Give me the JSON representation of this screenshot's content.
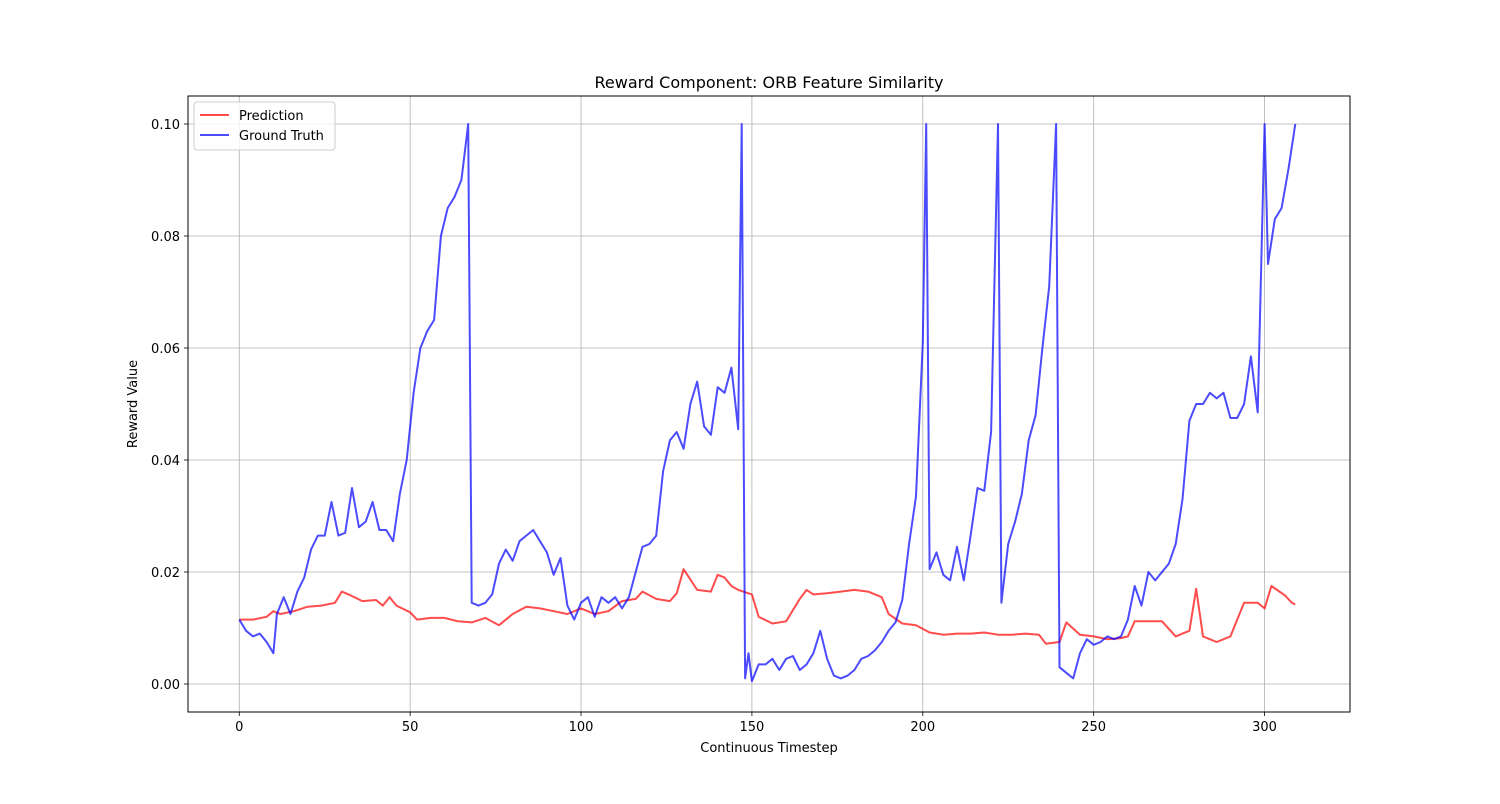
{
  "chart_data": {
    "type": "line",
    "title": "Reward Component: ORB Feature Similarity",
    "xlabel": "Continuous Timestep",
    "ylabel": "Reward Value",
    "xlim": [
      -15,
      325
    ],
    "ylim": [
      -0.005,
      0.105
    ],
    "xticks": [
      0,
      50,
      100,
      150,
      200,
      250,
      300
    ],
    "yticks": [
      0.0,
      0.02,
      0.04,
      0.06,
      0.08,
      0.1
    ],
    "xtick_labels": [
      "0",
      "50",
      "100",
      "150",
      "200",
      "250",
      "300"
    ],
    "ytick_labels": [
      "0.00",
      "0.02",
      "0.04",
      "0.06",
      "0.08",
      "0.10"
    ],
    "grid": true,
    "legend": "top-left",
    "series": [
      {
        "name": "Prediction",
        "color": "#ff0000",
        "x": [
          0,
          4,
          8,
          10,
          12,
          16,
          20,
          24,
          28,
          30,
          32,
          36,
          40,
          42,
          44,
          46,
          50,
          52,
          56,
          60,
          64,
          68,
          72,
          76,
          80,
          84,
          88,
          92,
          96,
          100,
          104,
          108,
          112,
          116,
          118,
          122,
          126,
          128,
          130,
          134,
          138,
          140,
          142,
          144,
          146,
          150,
          152,
          156,
          160,
          164,
          166,
          168,
          172,
          176,
          180,
          184,
          188,
          190,
          194,
          198,
          202,
          206,
          210,
          214,
          218,
          222,
          226,
          230,
          234,
          236,
          240,
          242,
          246,
          250,
          254,
          258,
          260,
          262,
          266,
          270,
          274,
          276,
          278,
          280,
          282,
          286,
          290,
          294,
          298,
          300,
          302,
          306,
          308,
          309
        ],
        "y": [
          0.0115,
          0.0115,
          0.012,
          0.013,
          0.0125,
          0.013,
          0.0138,
          0.014,
          0.0145,
          0.0165,
          0.016,
          0.0148,
          0.015,
          0.014,
          0.0155,
          0.014,
          0.0128,
          0.0115,
          0.0118,
          0.0118,
          0.0112,
          0.011,
          0.0118,
          0.0105,
          0.0125,
          0.0138,
          0.0135,
          0.013,
          0.0125,
          0.0135,
          0.0125,
          0.013,
          0.0148,
          0.0152,
          0.0165,
          0.0152,
          0.0148,
          0.0162,
          0.0205,
          0.0168,
          0.0165,
          0.0195,
          0.019,
          0.0175,
          0.0168,
          0.016,
          0.012,
          0.0108,
          0.0112,
          0.0152,
          0.0168,
          0.016,
          0.0162,
          0.0165,
          0.0168,
          0.0165,
          0.0155,
          0.0125,
          0.0108,
          0.0105,
          0.0092,
          0.0088,
          0.009,
          0.009,
          0.0092,
          0.0088,
          0.0088,
          0.009,
          0.0088,
          0.0072,
          0.0075,
          0.011,
          0.0088,
          0.0085,
          0.008,
          0.0082,
          0.0085,
          0.0112,
          0.0112,
          0.0112,
          0.0085,
          0.009,
          0.0095,
          0.017,
          0.0085,
          0.0075,
          0.0085,
          0.0145,
          0.0145,
          0.0135,
          0.0175,
          0.0158,
          0.0145,
          0.0142
        ]
      },
      {
        "name": "Ground Truth",
        "color": "#0000ff",
        "x": [
          0,
          2,
          4,
          6,
          8,
          10,
          11,
          13,
          15,
          17,
          19,
          21,
          23,
          25,
          27,
          29,
          31,
          33,
          35,
          37,
          39,
          41,
          43,
          45,
          47,
          49,
          51,
          53,
          55,
          57,
          59,
          61,
          63,
          65,
          67,
          68,
          70,
          72,
          74,
          76,
          78,
          80,
          82,
          84,
          86,
          88,
          90,
          92,
          94,
          96,
          98,
          100,
          102,
          104,
          106,
          108,
          110,
          112,
          114,
          116,
          118,
          120,
          122,
          124,
          126,
          128,
          130,
          132,
          134,
          136,
          138,
          140,
          142,
          144,
          146,
          147,
          148,
          149,
          150,
          152,
          154,
          156,
          158,
          160,
          162,
          164,
          166,
          168,
          170,
          172,
          174,
          176,
          178,
          180,
          182,
          184,
          186,
          188,
          190,
          192,
          194,
          196,
          198,
          200,
          201,
          202,
          204,
          206,
          208,
          210,
          212,
          214,
          216,
          218,
          220,
          222,
          223,
          225,
          227,
          229,
          231,
          233,
          235,
          237,
          239,
          240,
          242,
          244,
          246,
          248,
          250,
          252,
          254,
          256,
          258,
          260,
          262,
          264,
          266,
          268,
          270,
          272,
          274,
          276,
          278,
          280,
          282,
          284,
          286,
          288,
          290,
          292,
          294,
          296,
          298,
          300,
          301,
          303,
          305,
          307,
          309
        ],
        "y": [
          0.0115,
          0.0095,
          0.0085,
          0.009,
          0.0075,
          0.0055,
          0.0125,
          0.0155,
          0.0125,
          0.0165,
          0.019,
          0.024,
          0.0265,
          0.0265,
          0.0325,
          0.0265,
          0.027,
          0.035,
          0.028,
          0.029,
          0.0325,
          0.0275,
          0.0275,
          0.0255,
          0.034,
          0.04,
          0.052,
          0.06,
          0.063,
          0.065,
          0.08,
          0.085,
          0.087,
          0.09,
          0.1,
          0.0145,
          0.014,
          0.0145,
          0.016,
          0.0215,
          0.024,
          0.022,
          0.0255,
          0.0265,
          0.0275,
          0.0255,
          0.0235,
          0.0195,
          0.0225,
          0.014,
          0.0115,
          0.0145,
          0.0155,
          0.012,
          0.0155,
          0.0145,
          0.0155,
          0.0135,
          0.0155,
          0.02,
          0.0245,
          0.025,
          0.0265,
          0.038,
          0.0435,
          0.045,
          0.042,
          0.05,
          0.054,
          0.046,
          0.0445,
          0.053,
          0.052,
          0.0565,
          0.0455,
          0.1,
          0.001,
          0.0055,
          0.0005,
          0.0035,
          0.0035,
          0.0045,
          0.0025,
          0.0045,
          0.005,
          0.0025,
          0.0035,
          0.0055,
          0.0095,
          0.0045,
          0.0015,
          0.001,
          0.0015,
          0.0025,
          0.0045,
          0.005,
          0.006,
          0.0075,
          0.0095,
          0.011,
          0.015,
          0.025,
          0.0335,
          0.061,
          0.1,
          0.0205,
          0.0235,
          0.0195,
          0.0185,
          0.0245,
          0.0185,
          0.0265,
          0.035,
          0.0345,
          0.045,
          0.1,
          0.0145,
          0.025,
          0.029,
          0.034,
          0.0435,
          0.048,
          0.06,
          0.071,
          0.1,
          0.003,
          0.002,
          0.001,
          0.0055,
          0.008,
          0.007,
          0.0075,
          0.0085,
          0.008,
          0.0085,
          0.0115,
          0.0175,
          0.014,
          0.02,
          0.0185,
          0.02,
          0.0215,
          0.025,
          0.033,
          0.047,
          0.05,
          0.05,
          0.052,
          0.051,
          0.052,
          0.0475,
          0.0475,
          0.05,
          0.0585,
          0.0485,
          0.1,
          0.075,
          0.083,
          0.085,
          0.092,
          0.1
        ]
      }
    ]
  }
}
